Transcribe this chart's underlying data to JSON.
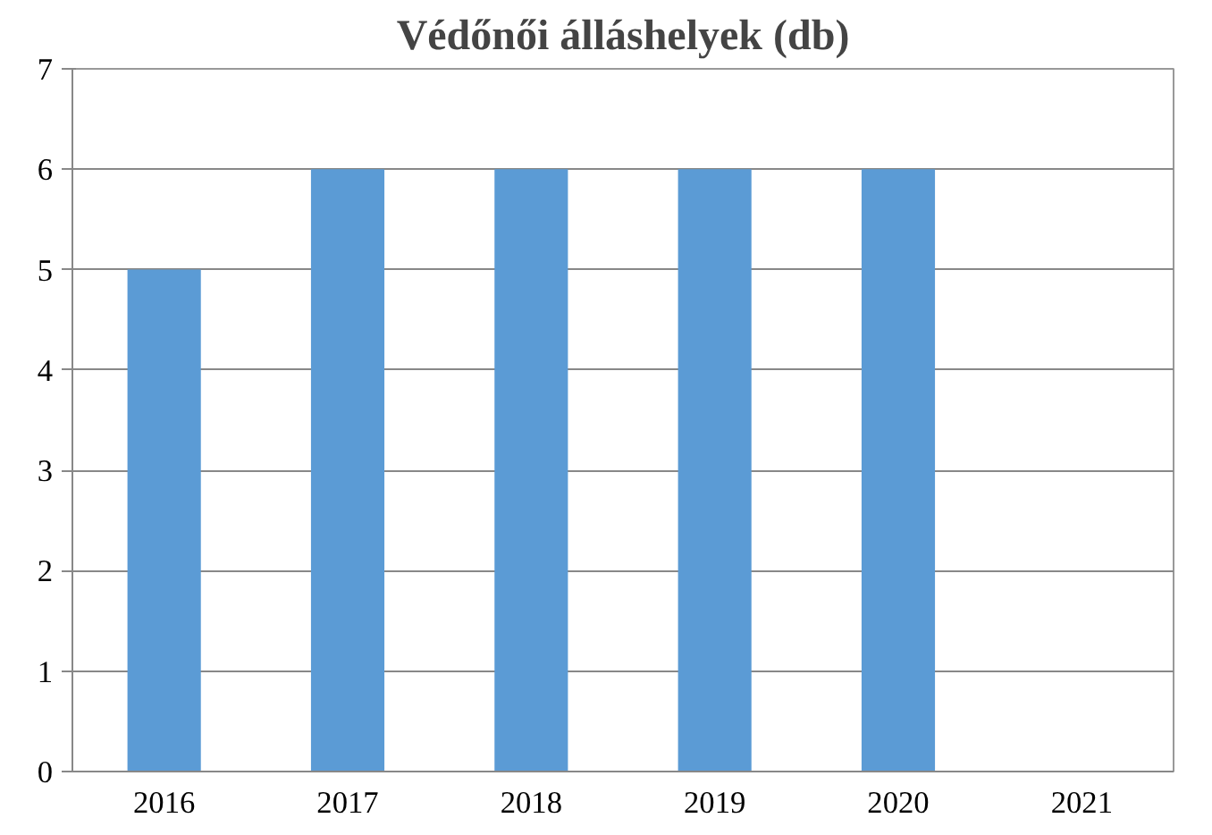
{
  "chart_data": {
    "type": "bar",
    "title": "Védőnői álláshelyek (db)",
    "categories": [
      "2016",
      "2017",
      "2018",
      "2019",
      "2020",
      "2021"
    ],
    "values": [
      5,
      6,
      6,
      6,
      6,
      null
    ],
    "color": "#5b9bd5",
    "ylim": [
      0,
      7
    ],
    "yticks": [
      0,
      1,
      2,
      3,
      4,
      5,
      6,
      7
    ],
    "grid": "y"
  }
}
